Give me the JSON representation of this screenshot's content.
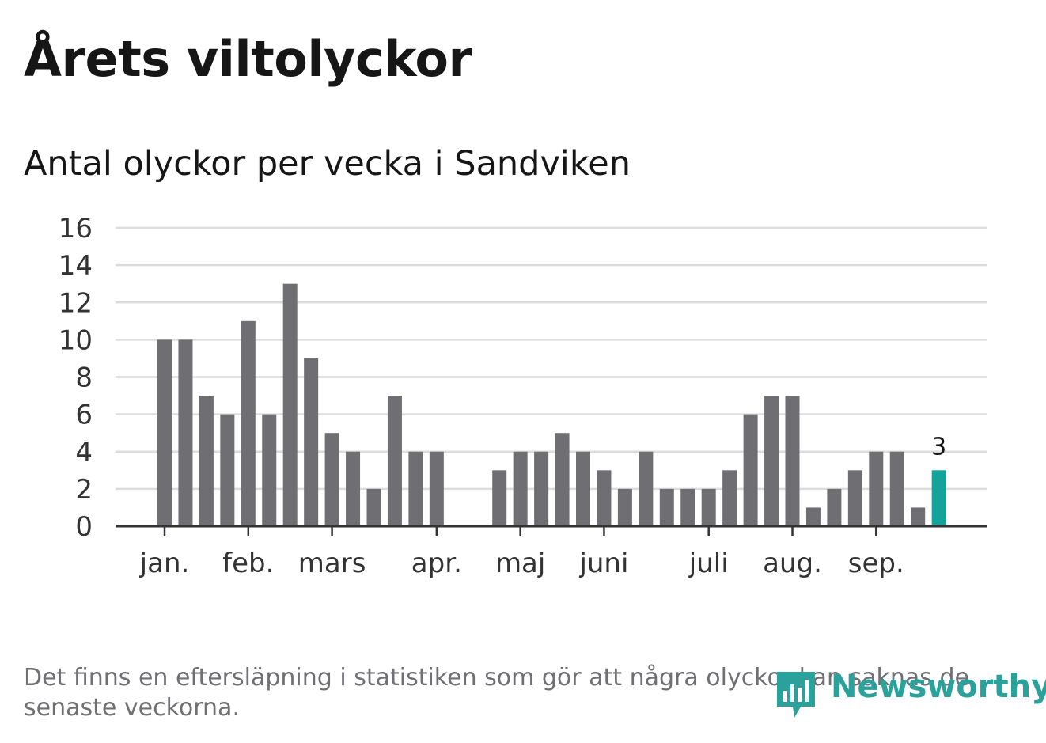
{
  "header": {
    "title": "Årets viltolyckor",
    "subtitle": "Antal olyckor per vecka i Sandviken"
  },
  "footer": {
    "note": "Det finns en eftersläpning i statistiken som gör att några olyckor kan saknas de senaste veckorna.",
    "brand": "Newsworthy"
  },
  "colors": {
    "bar": "#6f6e73",
    "highlight": "#13a39a",
    "grid": "#dcdcdc",
    "axis": "#333333"
  },
  "chart_data": {
    "type": "bar",
    "title": "Årets viltolyckor",
    "subtitle": "Antal olyckor per vecka i Sandviken",
    "xlabel": "",
    "ylabel": "",
    "ylim": [
      0,
      16
    ],
    "yticks": [
      0,
      2,
      4,
      6,
      8,
      10,
      12,
      14,
      16
    ],
    "grid": true,
    "weeks": [
      1,
      2,
      3,
      4,
      5,
      6,
      7,
      8,
      9,
      10,
      11,
      12,
      13,
      14,
      15,
      16,
      17,
      18,
      19,
      20,
      21,
      22,
      23,
      24,
      25,
      26,
      27,
      28,
      29,
      30,
      31,
      32,
      33,
      34,
      35,
      36,
      37,
      38,
      39,
      40,
      41,
      42,
      43,
      44,
      45,
      46,
      47,
      48,
      49,
      50,
      51,
      52
    ],
    "values": [
      10,
      10,
      7,
      6,
      11,
      6,
      13,
      9,
      5,
      4,
      2,
      7,
      4,
      4,
      0,
      0,
      3,
      4,
      4,
      5,
      4,
      3,
      2,
      4,
      2,
      2,
      2,
      3,
      6,
      7,
      7,
      1,
      2,
      3,
      4,
      4,
      1,
      3,
      null,
      null,
      null,
      null,
      null,
      null,
      null,
      null,
      null,
      null,
      null,
      null,
      null,
      null
    ],
    "month_ticks": [
      {
        "label": "jan.",
        "week": 1
      },
      {
        "label": "feb.",
        "week": 5
      },
      {
        "label": "mars",
        "week": 9
      },
      {
        "label": "apr.",
        "week": 14
      },
      {
        "label": "maj",
        "week": 18
      },
      {
        "label": "juni",
        "week": 22
      },
      {
        "label": "juli",
        "week": 27
      },
      {
        "label": "aug.",
        "week": 31
      },
      {
        "label": "sep.",
        "week": 35
      }
    ],
    "highlight_week": 38,
    "annotation": {
      "week": 38,
      "text": "3"
    }
  }
}
